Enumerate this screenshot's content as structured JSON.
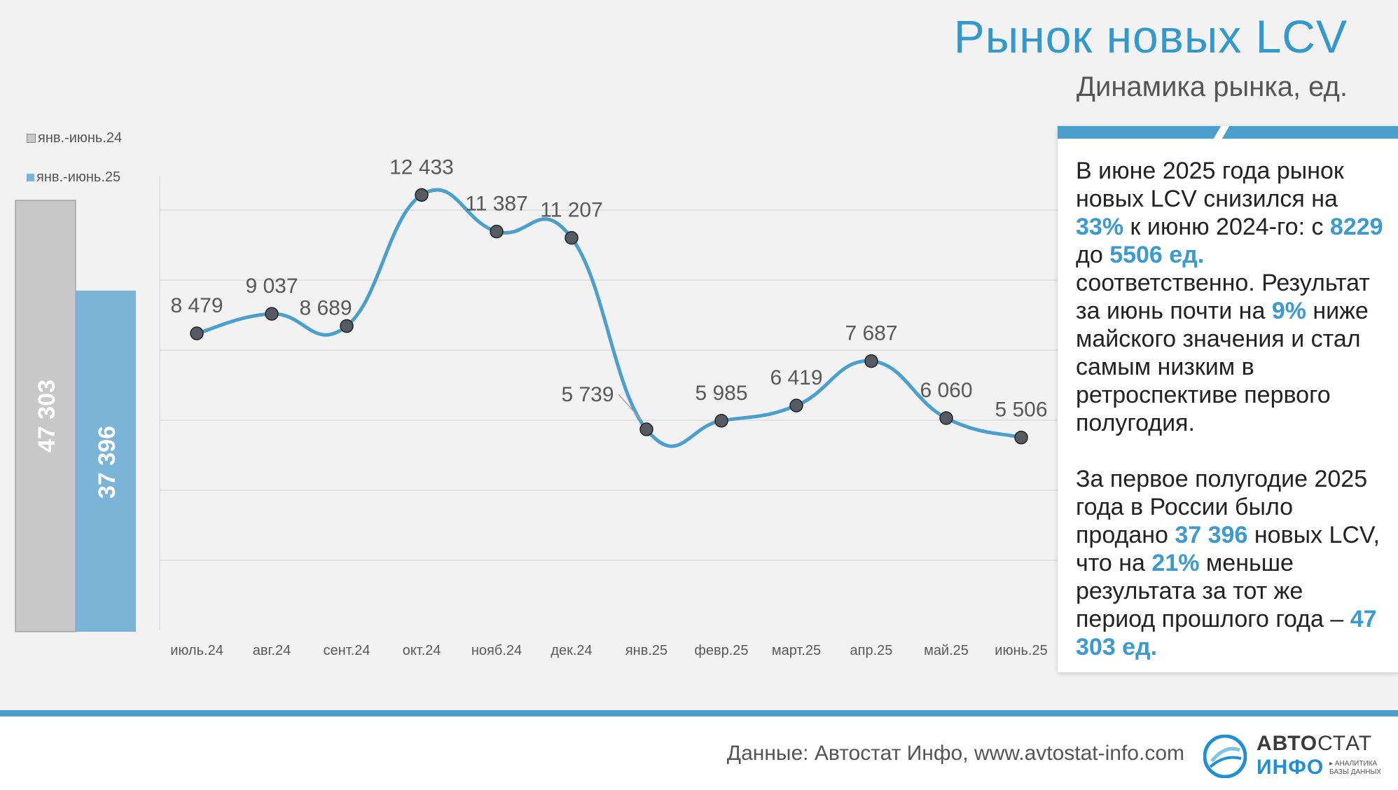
{
  "header": {
    "title": "Рынок новых LCV",
    "subtitle": "Динамика рынка, ед."
  },
  "colors": {
    "accent": "#3399cc",
    "line": "#4a9fcc",
    "bar_2024": "#c8c8c8",
    "bar_2025": "#7ab4d6",
    "marker": "#555a63"
  },
  "legend": {
    "item_2024": "янв.-июнь.24",
    "item_2025": "янв.-июнь.25"
  },
  "chart_data": [
    {
      "type": "bar",
      "categories": [
        "янв.-июнь.24",
        "янв.-июнь.25"
      ],
      "values": [
        47303,
        37396
      ],
      "value_labels": [
        "47 303",
        "37 396"
      ],
      "ylim": [
        0,
        60000
      ]
    },
    {
      "type": "line",
      "categories": [
        "июль.24",
        "авг.24",
        "сент.24",
        "окт.24",
        "нояб.24",
        "дек.24",
        "янв.25",
        "февр.25",
        "март.25",
        "апр.25",
        "май.25",
        "июнь.25"
      ],
      "values": [
        8479,
        9037,
        8689,
        12433,
        11387,
        11207,
        5739,
        5985,
        6419,
        7687,
        6060,
        5506
      ],
      "value_labels": [
        "8 479",
        "9 037",
        "8 689",
        "12 433",
        "11 387",
        "11 207",
        "5 739",
        "5 985",
        "6 419",
        "7 687",
        "6 060",
        "5 506"
      ],
      "ylim": [
        0,
        14000
      ],
      "grid": true,
      "smooth": true
    }
  ],
  "summary": {
    "p1": [
      {
        "t": "В июне 2025 года рынок новых LCV снизился на "
      },
      {
        "t": "33%",
        "hl": true
      },
      {
        "t": " к июню 2024-го: с "
      },
      {
        "t": "8229",
        "hl": true
      },
      {
        "t": " до "
      },
      {
        "t": "5506 ед.",
        "hl": true
      },
      {
        "t": " соответственно. Результат за июнь почти на "
      },
      {
        "t": "9%",
        "hl": true
      },
      {
        "t": " ниже майского значения и стал самым низким в ретроспективе первого полугодия."
      }
    ],
    "p2": [
      {
        "t": "За первое полугодие 2025 года в России было продано "
      },
      {
        "t": "37 396",
        "hl": true
      },
      {
        "t": " новых LCV, что на "
      },
      {
        "t": "21%",
        "hl": true
      },
      {
        "t": " меньше результата за тот же период прошлого года – "
      },
      {
        "t": "47 303 ед.",
        "hl": true
      }
    ]
  },
  "footer": {
    "source": "Данные: Автостат Инфо, www.avtostat-info.com",
    "logo_avto": "АВТО",
    "logo_stat": "СТАТ",
    "logo_info": "ИНФО",
    "logo_tag1": "▸ АНАЛИТИКА",
    "logo_tag2": "БАЗЫ ДАННЫХ"
  }
}
